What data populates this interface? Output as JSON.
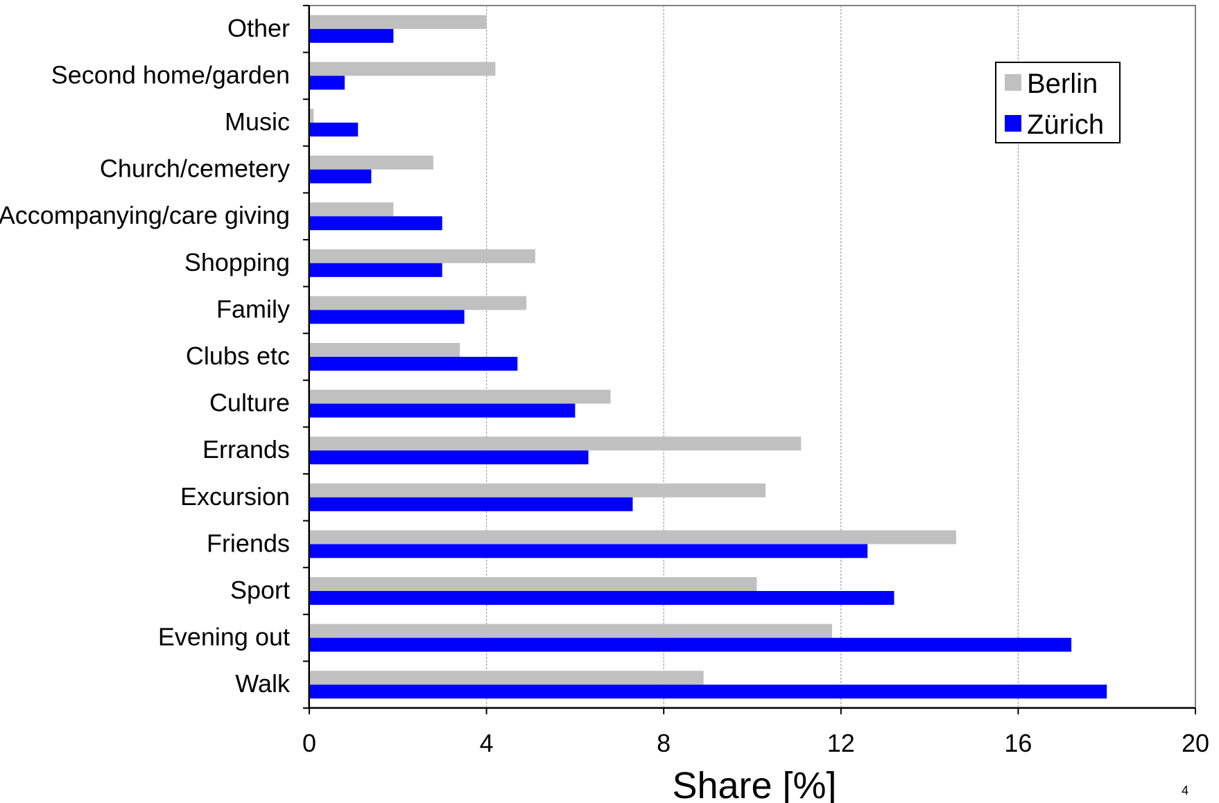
{
  "chart_data": {
    "type": "bar",
    "orientation": "horizontal",
    "categories": [
      "Walk",
      "Evening out",
      "Sport",
      "Friends",
      "Excursion",
      "Errands",
      "Culture",
      "Clubs etc",
      "Family",
      "Shopping",
      "Accompanying/care giving",
      "Church/cemetery",
      "Music",
      "Second home/garden",
      "Other"
    ],
    "series": [
      {
        "name": "Berlin",
        "color": "#c0c0c0",
        "values": [
          8.9,
          11.8,
          10.1,
          14.6,
          10.3,
          11.1,
          6.8,
          3.4,
          4.9,
          5.1,
          1.9,
          2.8,
          0.1,
          4.2,
          4.0
        ]
      },
      {
        "name": "Zürich",
        "color": "#0000ff",
        "values": [
          18.0,
          17.2,
          13.2,
          12.6,
          7.3,
          6.3,
          6.0,
          4.7,
          3.5,
          3.0,
          3.0,
          1.4,
          1.1,
          0.8,
          1.9
        ]
      }
    ],
    "xlabel": "Share [%]",
    "ylabel": "",
    "title": "",
    "xlim": [
      0,
      20
    ],
    "xticks": [
      "0",
      "4",
      "8",
      "12",
      "16",
      "20"
    ],
    "grid": "vertical dashed gridlines",
    "legend": "top-right"
  },
  "page_number": "4"
}
